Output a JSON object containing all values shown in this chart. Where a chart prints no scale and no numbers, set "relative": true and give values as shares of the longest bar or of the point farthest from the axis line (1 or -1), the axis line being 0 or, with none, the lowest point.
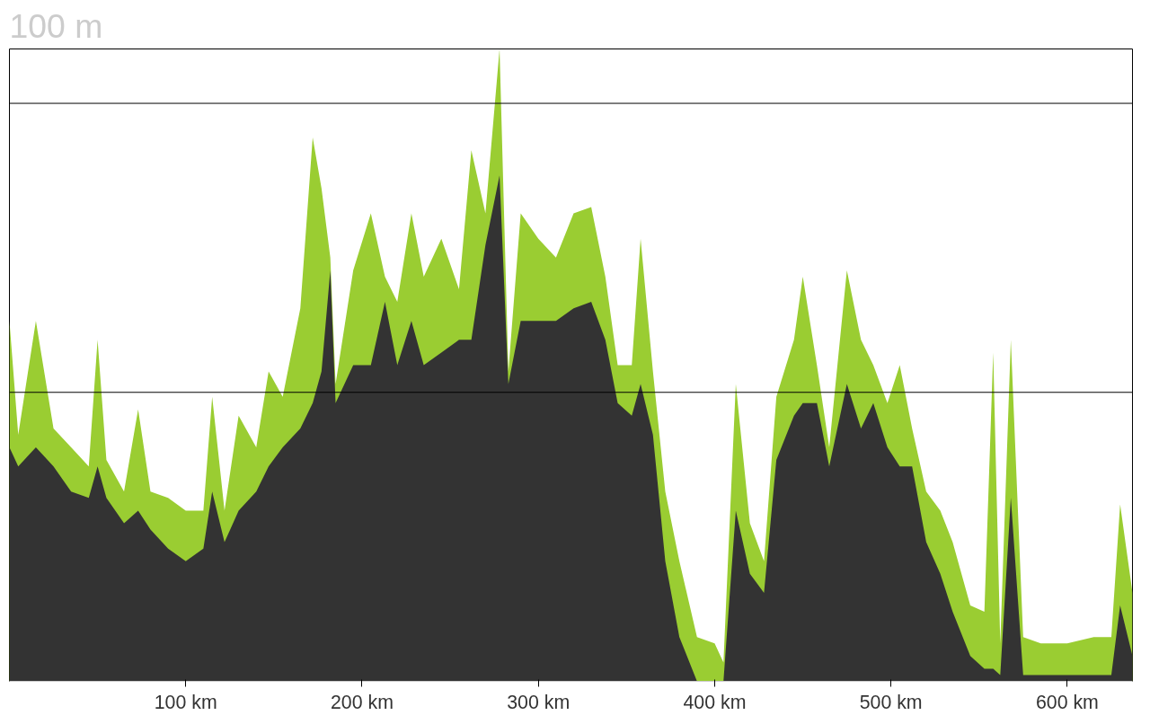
{
  "chart_data": {
    "type": "area",
    "relative": true,
    "annotations": [
      "100 m"
    ],
    "x": [
      0,
      5,
      15,
      25,
      35,
      45,
      50,
      55,
      65,
      73,
      80,
      90,
      100,
      110,
      115,
      122,
      130,
      140,
      147,
      155,
      165,
      172,
      177,
      182,
      185,
      195,
      205,
      213,
      220,
      228,
      235,
      245,
      255,
      262,
      270,
      278,
      283,
      290,
      300,
      310,
      320,
      330,
      338,
      345,
      353,
      358,
      365,
      372,
      380,
      390,
      400,
      405,
      412,
      420,
      428,
      435,
      445,
      450,
      458,
      465,
      475,
      483,
      490,
      498,
      505,
      512,
      520,
      528,
      535,
      545,
      553,
      558,
      562,
      568,
      575,
      585,
      600,
      615,
      625,
      630,
      637
    ],
    "xlim": [
      0,
      637
    ],
    "xticks": [
      {
        "value": 100,
        "label": "100 km"
      },
      {
        "value": 200,
        "label": "200 km"
      },
      {
        "value": 300,
        "label": "300 km"
      },
      {
        "value": 400,
        "label": "400 km"
      },
      {
        "value": 500,
        "label": "500 km"
      },
      {
        "value": 600,
        "label": "600 km"
      }
    ],
    "series": [
      {
        "color": "#9acd32",
        "values": [
          0.57,
          0.39,
          0.57,
          0.4,
          0.37,
          0.34,
          0.54,
          0.35,
          0.3,
          0.43,
          0.3,
          0.29,
          0.27,
          0.27,
          0.45,
          0.27,
          0.42,
          0.37,
          0.49,
          0.45,
          0.59,
          0.86,
          0.78,
          0.67,
          0.47,
          0.65,
          0.74,
          0.64,
          0.6,
          0.74,
          0.64,
          0.7,
          0.62,
          0.84,
          0.74,
          1.0,
          0.49,
          0.74,
          0.7,
          0.67,
          0.74,
          0.75,
          0.64,
          0.5,
          0.5,
          0.7,
          0.49,
          0.3,
          0.19,
          0.07,
          0.06,
          0.03,
          0.47,
          0.25,
          0.19,
          0.45,
          0.54,
          0.64,
          0.5,
          0.37,
          0.65,
          0.54,
          0.5,
          0.44,
          0.5,
          0.4,
          0.3,
          0.27,
          0.22,
          0.12,
          0.11,
          0.52,
          0.06,
          0.54,
          0.07,
          0.06,
          0.06,
          0.07,
          0.07,
          0.28,
          0.14
        ]
      },
      {
        "color": "#333333",
        "values": [
          0.37,
          0.34,
          0.37,
          0.34,
          0.3,
          0.29,
          0.34,
          0.29,
          0.25,
          0.27,
          0.24,
          0.21,
          0.19,
          0.21,
          0.3,
          0.22,
          0.27,
          0.3,
          0.34,
          0.37,
          0.4,
          0.44,
          0.49,
          0.65,
          0.44,
          0.5,
          0.5,
          0.6,
          0.5,
          0.57,
          0.5,
          0.52,
          0.54,
          0.54,
          0.69,
          0.8,
          0.47,
          0.57,
          0.57,
          0.57,
          0.59,
          0.6,
          0.54,
          0.44,
          0.42,
          0.47,
          0.39,
          0.19,
          0.07,
          0,
          0,
          0,
          0.27,
          0.17,
          0.14,
          0.35,
          0.42,
          0.44,
          0.44,
          0.34,
          0.47,
          0.4,
          0.44,
          0.37,
          0.34,
          0.34,
          0.22,
          0.17,
          0.11,
          0.04,
          0.02,
          0.02,
          0.01,
          0.29,
          0.01,
          0.01,
          0.01,
          0.01,
          0.01,
          0.12,
          0.04
        ]
      }
    ],
    "ref_lines": [
      {
        "axis": "y",
        "value": 0.914,
        "color": "#000000"
      },
      {
        "axis": "y",
        "value": 0.457,
        "color": "#000000"
      }
    ]
  }
}
